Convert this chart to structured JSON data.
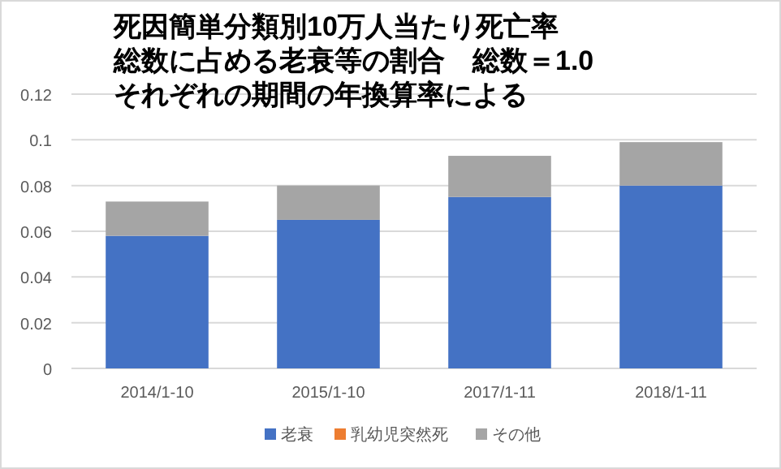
{
  "chart_data": {
    "type": "bar",
    "stacked": true,
    "title": "死因簡単分類別10万人当たり死亡率",
    "subtitle": "総数に占める老衰等の割合　総数＝1.0",
    "annotations": [
      "それぞれの期間の年換算率による"
    ],
    "categories": [
      "2014/1-10",
      "2015/1-10",
      "2017/1-11",
      "2018/1-11"
    ],
    "series": [
      {
        "name": "老衰",
        "color": "#4472c4",
        "values": [
          0.058,
          0.065,
          0.075,
          0.08
        ]
      },
      {
        "name": "乳幼児突然死",
        "color": "#ed7d31",
        "values": [
          0,
          0,
          0,
          0
        ]
      },
      {
        "name": "その他",
        "color": "#a5a5a5",
        "values": [
          0.015,
          0.015,
          0.018,
          0.019
        ]
      }
    ],
    "ylim": [
      0,
      0.12
    ],
    "yticks": [
      0,
      0.02,
      0.04,
      0.06,
      0.08,
      0.1,
      0.12
    ],
    "grid": "y",
    "legend": "bottom"
  }
}
